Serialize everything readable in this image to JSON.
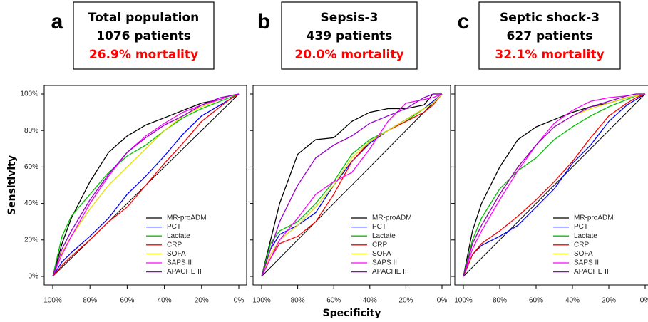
{
  "chart_data": [
    {
      "type": "line",
      "panel_label": "a",
      "title": "Total population",
      "subtitle": "1076 patients",
      "annotation": "26.9% mortality",
      "annotation_color": "#ff0000",
      "ylabel": "Sensitivity",
      "x": [
        100,
        95,
        90,
        80,
        70,
        60,
        50,
        40,
        30,
        20,
        10,
        5,
        0
      ],
      "xlim": [
        100,
        0
      ],
      "ylim": [
        0,
        100
      ],
      "xticks": [
        {
          "value": 100,
          "label": "100%"
        },
        {
          "value": 80,
          "label": "80%"
        },
        {
          "value": 60,
          "label": "60%"
        },
        {
          "value": 40,
          "label": "40%"
        },
        {
          "value": 20,
          "label": "20%"
        },
        {
          "value": 0,
          "label": "0%"
        }
      ],
      "yticks": [
        {
          "value": 0,
          "label": "0%"
        },
        {
          "value": 20,
          "label": "20%"
        },
        {
          "value": 40,
          "label": "40%"
        },
        {
          "value": 60,
          "label": "60%"
        },
        {
          "value": 80,
          "label": "80%"
        },
        {
          "value": 100,
          "label": "100%"
        }
      ],
      "series": [
        {
          "name": "MR-proADM",
          "color": "#000000",
          "values": [
            0,
            18,
            32,
            52,
            68,
            77,
            83,
            87,
            91,
            95,
            97,
            99,
            100
          ]
        },
        {
          "name": "PCT",
          "color": "#0000ff",
          "values": [
            0,
            8,
            13,
            22,
            32,
            45,
            55,
            66,
            78,
            88,
            94,
            97,
            100
          ]
        },
        {
          "name": "Lactate",
          "color": "#00c000",
          "values": [
            0,
            22,
            33,
            45,
            57,
            66,
            72,
            80,
            87,
            92,
            96,
            98,
            100
          ]
        },
        {
          "name": "CRP",
          "color": "#ff0000",
          "values": [
            0,
            6,
            11,
            20,
            30,
            38,
            50,
            62,
            73,
            85,
            93,
            97,
            100
          ]
        },
        {
          "name": "SOFA",
          "color": "#e0e000",
          "values": [
            0,
            13,
            22,
            37,
            50,
            60,
            70,
            80,
            88,
            93,
            97,
            99,
            100
          ]
        },
        {
          "name": "SAPS II",
          "color": "#ff00ff",
          "values": [
            0,
            12,
            22,
            40,
            55,
            68,
            77,
            84,
            90,
            94,
            97,
            99,
            100
          ]
        },
        {
          "name": "APACHE II",
          "color": "#9900cc",
          "values": [
            0,
            15,
            25,
            42,
            56,
            68,
            76,
            83,
            88,
            94,
            98,
            99,
            100
          ]
        }
      ]
    },
    {
      "type": "line",
      "panel_label": "b",
      "title": "Sepsis-3",
      "subtitle": "439 patients",
      "annotation": "20.0% mortality",
      "annotation_color": "#ff0000",
      "xlabel": "Specificity",
      "x": [
        100,
        95,
        90,
        80,
        70,
        60,
        50,
        40,
        30,
        20,
        10,
        5,
        0
      ],
      "xlim": [
        100,
        0
      ],
      "ylim": [
        0,
        100
      ],
      "xticks": [
        {
          "value": 100,
          "label": "100%"
        },
        {
          "value": 80,
          "label": "80%"
        },
        {
          "value": 60,
          "label": "60%"
        },
        {
          "value": 40,
          "label": "40%"
        },
        {
          "value": 20,
          "label": "20%"
        },
        {
          "value": 0,
          "label": "0%"
        }
      ],
      "yticks": [
        0,
        20,
        40,
        60,
        80,
        100
      ],
      "series": [
        {
          "name": "MR-proADM",
          "color": "#000000",
          "values": [
            0,
            20,
            40,
            67,
            75,
            76,
            85,
            90,
            92,
            92,
            94,
            100,
            100
          ]
        },
        {
          "name": "PCT",
          "color": "#0000ff",
          "values": [
            0,
            15,
            23,
            28,
            35,
            50,
            63,
            73,
            80,
            86,
            92,
            96,
            100
          ]
        },
        {
          "name": "Lactate",
          "color": "#00c000",
          "values": [
            0,
            18,
            25,
            30,
            40,
            52,
            67,
            75,
            80,
            85,
            92,
            95,
            100
          ]
        },
        {
          "name": "CRP",
          "color": "#ff0000",
          "values": [
            0,
            10,
            18,
            22,
            30,
            45,
            63,
            74,
            80,
            85,
            90,
            94,
            100
          ]
        },
        {
          "name": "SOFA",
          "color": "#e0e000",
          "values": [
            0,
            12,
            20,
            28,
            38,
            50,
            65,
            74,
            80,
            86,
            92,
            95,
            100
          ]
        },
        {
          "name": "SAPS II",
          "color": "#ff00ff",
          "values": [
            0,
            10,
            20,
            32,
            45,
            52,
            57,
            70,
            85,
            95,
            97,
            98,
            100
          ]
        },
        {
          "name": "APACHE II",
          "color": "#9900cc",
          "values": [
            0,
            15,
            30,
            50,
            65,
            72,
            77,
            84,
            88,
            92,
            98,
            100,
            100
          ]
        }
      ]
    },
    {
      "type": "line",
      "panel_label": "c",
      "title": "Septic shock-3",
      "subtitle": "627 patients",
      "annotation": "32.1% mortality",
      "annotation_color": "#ff0000",
      "x": [
        100,
        95,
        90,
        80,
        70,
        60,
        50,
        40,
        30,
        20,
        10,
        5,
        0
      ],
      "xlim": [
        100,
        0
      ],
      "ylim": [
        0,
        100
      ],
      "xticks": [
        {
          "value": 100,
          "label": "100%"
        },
        {
          "value": 80,
          "label": "80%"
        },
        {
          "value": 60,
          "label": "60%"
        },
        {
          "value": 40,
          "label": "40%"
        },
        {
          "value": 20,
          "label": "20%"
        },
        {
          "value": 0,
          "label": "0%"
        }
      ],
      "yticks": [
        0,
        20,
        40,
        60,
        80,
        100
      ],
      "series": [
        {
          "name": "MR-proADM",
          "color": "#000000",
          "values": [
            0,
            25,
            40,
            60,
            75,
            82,
            86,
            90,
            93,
            95,
            98,
            99,
            100
          ]
        },
        {
          "name": "PCT",
          "color": "#0000ff",
          "values": [
            0,
            12,
            17,
            22,
            28,
            38,
            48,
            62,
            72,
            85,
            94,
            97,
            100
          ]
        },
        {
          "name": "Lactate",
          "color": "#00c000",
          "values": [
            0,
            20,
            32,
            48,
            58,
            65,
            75,
            82,
            88,
            93,
            97,
            99,
            100
          ]
        },
        {
          "name": "CRP",
          "color": "#ff0000",
          "values": [
            0,
            12,
            18,
            25,
            33,
            42,
            52,
            63,
            76,
            88,
            95,
            98,
            100
          ]
        },
        {
          "name": "SOFA",
          "color": "#e0e000",
          "values": [
            0,
            18,
            28,
            45,
            60,
            72,
            82,
            88,
            92,
            95,
            98,
            99,
            100
          ]
        },
        {
          "name": "SAPS II",
          "color": "#ff00ff",
          "values": [
            0,
            15,
            25,
            42,
            58,
            72,
            84,
            91,
            96,
            98,
            99,
            100,
            100
          ]
        },
        {
          "name": "APACHE II",
          "color": "#9900cc",
          "values": [
            0,
            18,
            28,
            45,
            60,
            72,
            82,
            88,
            93,
            96,
            99,
            100,
            100
          ]
        }
      ]
    }
  ]
}
